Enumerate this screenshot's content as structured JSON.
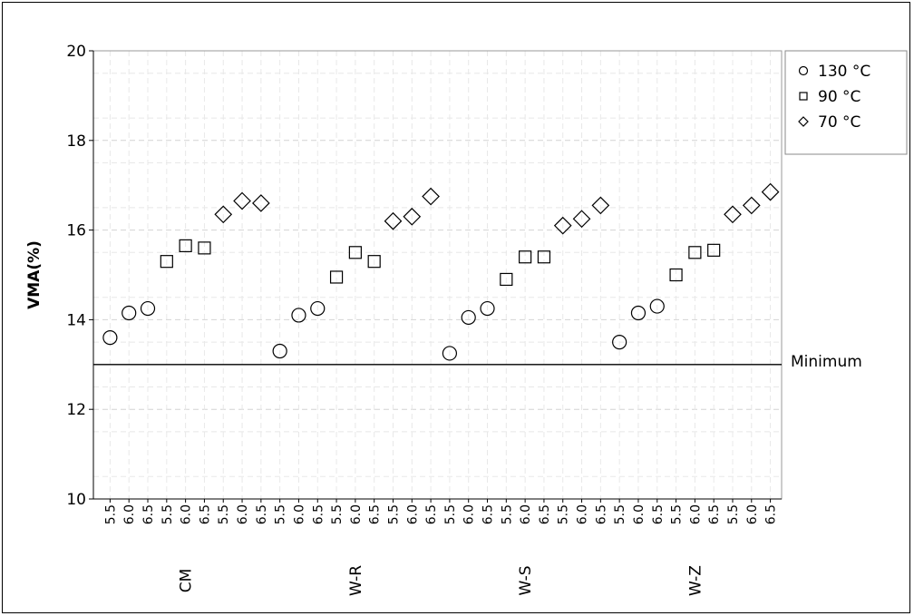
{
  "chart_data": {
    "type": "scatter",
    "title": "",
    "ylabel": "VMA(%)",
    "ylim": [
      10,
      20
    ],
    "yticks": [
      10,
      12,
      14,
      16,
      18,
      20
    ],
    "grid": true,
    "legend_position": "top-right",
    "binder_levels": [
      "5.5",
      "6.0",
      "6.5"
    ],
    "groups": [
      "CM",
      "W-R",
      "W-S",
      "W-Z"
    ],
    "reference_line": {
      "label": "Minimum",
      "value": 13.0
    },
    "series": [
      {
        "name": "130 °C",
        "marker": "circle",
        "temperature_index": 0,
        "values": {
          "CM": [
            13.6,
            14.15,
            14.25
          ],
          "W-R": [
            13.3,
            14.1,
            14.25
          ],
          "W-S": [
            13.25,
            14.05,
            14.25
          ],
          "W-Z": [
            13.5,
            14.15,
            14.3
          ]
        }
      },
      {
        "name": "90 °C",
        "marker": "square",
        "temperature_index": 1,
        "values": {
          "CM": [
            15.3,
            15.65,
            15.6
          ],
          "W-R": [
            14.95,
            15.5,
            15.3
          ],
          "W-S": [
            14.9,
            15.4,
            15.4
          ],
          "W-Z": [
            15.0,
            15.5,
            15.55
          ]
        }
      },
      {
        "name": "70 °C",
        "marker": "diamond",
        "temperature_index": 2,
        "values": {
          "CM": [
            16.35,
            16.65,
            16.6
          ],
          "W-R": [
            16.2,
            16.3,
            16.75
          ],
          "W-S": [
            16.1,
            16.25,
            16.55
          ],
          "W-Z": [
            16.35,
            16.55,
            16.85
          ]
        }
      }
    ]
  }
}
